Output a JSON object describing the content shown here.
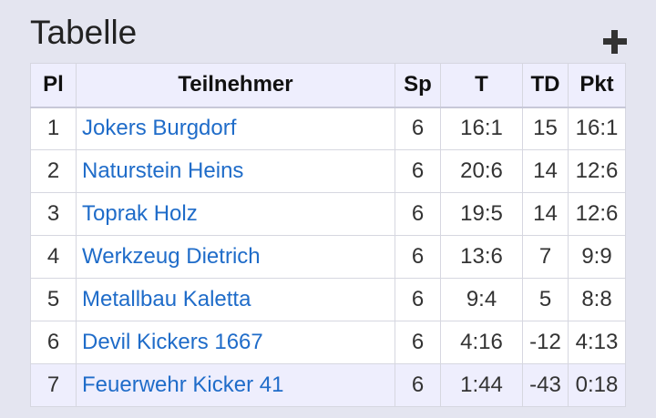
{
  "page": {
    "title": "Tabelle"
  },
  "table": {
    "headers": {
      "pl": "Pl",
      "team": "Teilnehmer",
      "sp": "Sp",
      "t": "T",
      "td": "TD",
      "pkt": "Pkt"
    },
    "rows": [
      {
        "pl": "1",
        "team": "Jokers Burgdorf",
        "sp": "6",
        "t": "16:1",
        "td": "15",
        "pkt": "16:1"
      },
      {
        "pl": "2",
        "team": "Naturstein Heins",
        "sp": "6",
        "t": "20:6",
        "td": "14",
        "pkt": "12:6"
      },
      {
        "pl": "3",
        "team": "Toprak Holz",
        "sp": "6",
        "t": "19:5",
        "td": "14",
        "pkt": "12:6"
      },
      {
        "pl": "4",
        "team": "Werkzeug Dietrich",
        "sp": "6",
        "t": "13:6",
        "td": "7",
        "pkt": "9:9"
      },
      {
        "pl": "5",
        "team": "Metallbau Kaletta",
        "sp": "6",
        "t": "9:4",
        "td": "5",
        "pkt": "8:8"
      },
      {
        "pl": "6",
        "team": "Devil Kickers 1667",
        "sp": "6",
        "t": "4:16",
        "td": "-12",
        "pkt": "4:13"
      },
      {
        "pl": "7",
        "team": "Feuerwehr Kicker 41",
        "sp": "6",
        "t": "1:44",
        "td": "-43",
        "pkt": "0:18"
      }
    ]
  },
  "colors": {
    "background": "#e4e5f0",
    "header_bg": "#eeeefd",
    "link": "#1f6cc9"
  },
  "icons": {
    "add": "plus-icon"
  }
}
